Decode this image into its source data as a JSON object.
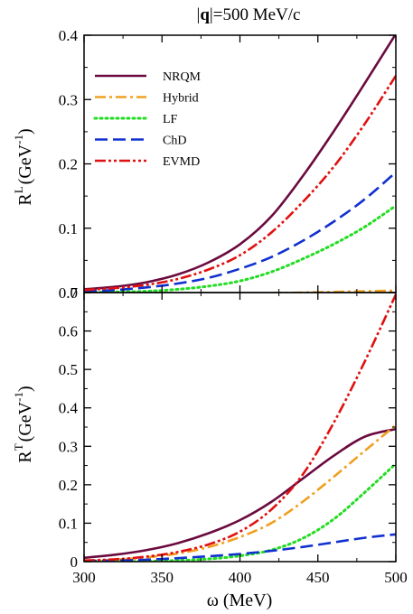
{
  "chart_data": [
    {
      "type": "line",
      "title": "|q|=500 MeV/c",
      "title_prefix": "|",
      "title_bold": "q",
      "title_suffix": "|=500 MeV/c",
      "ylabel": "R^L (GeV^-1)",
      "ylabel_base": "R",
      "ylabel_sup": "L",
      "ylabel_unit_open": "(GeV",
      "ylabel_unit_exp": "-1",
      "ylabel_unit_close": ")",
      "xlim": [
        300,
        500
      ],
      "ylim": [
        0,
        0.4
      ],
      "yticks": [
        0,
        0.1,
        0.2,
        0.3,
        0.4
      ],
      "yticklabels": [
        "0",
        "0.1",
        "0.2",
        "0.3",
        "0.4"
      ],
      "legend_position": "top-left",
      "x": [
        300,
        320,
        340,
        360,
        380,
        400,
        420,
        440,
        460,
        480,
        500
      ],
      "series": [
        {
          "name": "NRQM",
          "color": "#6b0a3e",
          "dash": "solid",
          "values": [
            0.005,
            0.009,
            0.016,
            0.028,
            0.047,
            0.075,
            0.118,
            0.18,
            0.25,
            0.325,
            0.402
          ]
        },
        {
          "name": "Hybrid",
          "color": "#f0a020",
          "dash": "dash-dot",
          "values": [
            0.0,
            -0.002,
            -0.003,
            -0.003,
            -0.002,
            -0.002,
            -0.001,
            0.0,
            0.001,
            0.002,
            0.003
          ]
        },
        {
          "name": "LF",
          "color": "#22dd22",
          "dash": "dotted",
          "values": [
            0.0,
            0.001,
            0.002,
            0.005,
            0.01,
            0.018,
            0.032,
            0.052,
            0.075,
            0.102,
            0.135
          ]
        },
        {
          "name": "ChD",
          "color": "#1030d0",
          "dash": "dashed",
          "values": [
            0.002,
            0.004,
            0.008,
            0.014,
            0.023,
            0.037,
            0.055,
            0.08,
            0.11,
            0.145,
            0.187
          ]
        },
        {
          "name": "EVMD",
          "color": "#e01010",
          "dash": "dash-dot-dot",
          "values": [
            0.004,
            0.007,
            0.012,
            0.021,
            0.036,
            0.058,
            0.093,
            0.14,
            0.195,
            0.262,
            0.337
          ]
        }
      ]
    },
    {
      "type": "line",
      "ylabel": "R^T (GeV^-1)",
      "ylabel_base": "R",
      "ylabel_sup": "T",
      "ylabel_unit_open": "(GeV",
      "ylabel_unit_exp": "-1",
      "ylabel_unit_close": ")",
      "xlabel": "ω (MeV)",
      "xlim": [
        300,
        500
      ],
      "xticks": [
        300,
        350,
        400,
        450,
        500
      ],
      "xticklabels": [
        "300",
        "350",
        "400",
        "450",
        "500"
      ],
      "ylim": [
        0,
        0.7
      ],
      "yticks": [
        0,
        0.1,
        0.2,
        0.3,
        0.4,
        0.5,
        0.6,
        0.7
      ],
      "yticklabels": [
        "0",
        "0.1",
        "0.2",
        "0.3",
        "0.4",
        "0.5",
        "0.6",
        "0.7"
      ],
      "x": [
        300,
        320,
        340,
        360,
        380,
        400,
        420,
        440,
        460,
        480,
        500
      ],
      "series": [
        {
          "name": "NRQM",
          "color": "#6b0a3e",
          "dash": "solid",
          "values": [
            0.01,
            0.018,
            0.03,
            0.048,
            0.074,
            0.108,
            0.155,
            0.215,
            0.275,
            0.325,
            0.345
          ]
        },
        {
          "name": "Hybrid",
          "color": "#f0a020",
          "dash": "dash-dot",
          "values": [
            0.001,
            0.005,
            0.011,
            0.021,
            0.038,
            0.064,
            0.1,
            0.155,
            0.22,
            0.288,
            0.355
          ]
        },
        {
          "name": "LF",
          "color": "#22dd22",
          "dash": "dotted",
          "values": [
            0.0,
            0.0,
            0.001,
            0.003,
            0.007,
            0.015,
            0.03,
            0.06,
            0.11,
            0.18,
            0.255
          ]
        },
        {
          "name": "ChD",
          "color": "#1030d0",
          "dash": "dashed",
          "values": [
            0.002,
            0.003,
            0.005,
            0.009,
            0.014,
            0.02,
            0.028,
            0.038,
            0.05,
            0.062,
            0.071
          ]
        },
        {
          "name": "EVMD",
          "color": "#e01010",
          "dash": "dash-dot-dot",
          "values": [
            0.003,
            0.006,
            0.013,
            0.025,
            0.045,
            0.078,
            0.135,
            0.225,
            0.36,
            0.52,
            0.695
          ]
        }
      ]
    }
  ]
}
